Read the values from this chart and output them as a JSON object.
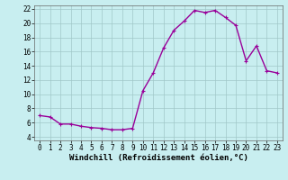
{
  "x": [
    0,
    1,
    2,
    3,
    4,
    5,
    6,
    7,
    8,
    9,
    10,
    11,
    12,
    13,
    14,
    15,
    16,
    17,
    18,
    19,
    20,
    21,
    22,
    23
  ],
  "y": [
    7.0,
    6.8,
    5.8,
    5.8,
    5.5,
    5.3,
    5.2,
    5.0,
    5.0,
    5.2,
    10.5,
    13.0,
    16.5,
    19.0,
    20.3,
    21.8,
    21.5,
    21.8,
    20.8,
    19.7,
    14.7,
    16.8,
    13.3,
    13.0
  ],
  "line_color": "#990099",
  "marker": "+",
  "markersize": 3,
  "linewidth": 1.0,
  "bg_color": "#c8eef0",
  "grid_color": "#a0c8c8",
  "xlabel": "Windchill (Refroidissement éolien,°C)",
  "xlabel_fontsize": 6.5,
  "tick_fontsize": 5.5,
  "xlim": [
    -0.5,
    23.5
  ],
  "ylim": [
    3.5,
    22.5
  ],
  "yticks": [
    4,
    6,
    8,
    10,
    12,
    14,
    16,
    18,
    20,
    22
  ],
  "xticks": [
    0,
    1,
    2,
    3,
    4,
    5,
    6,
    7,
    8,
    9,
    10,
    11,
    12,
    13,
    14,
    15,
    16,
    17,
    18,
    19,
    20,
    21,
    22,
    23
  ]
}
